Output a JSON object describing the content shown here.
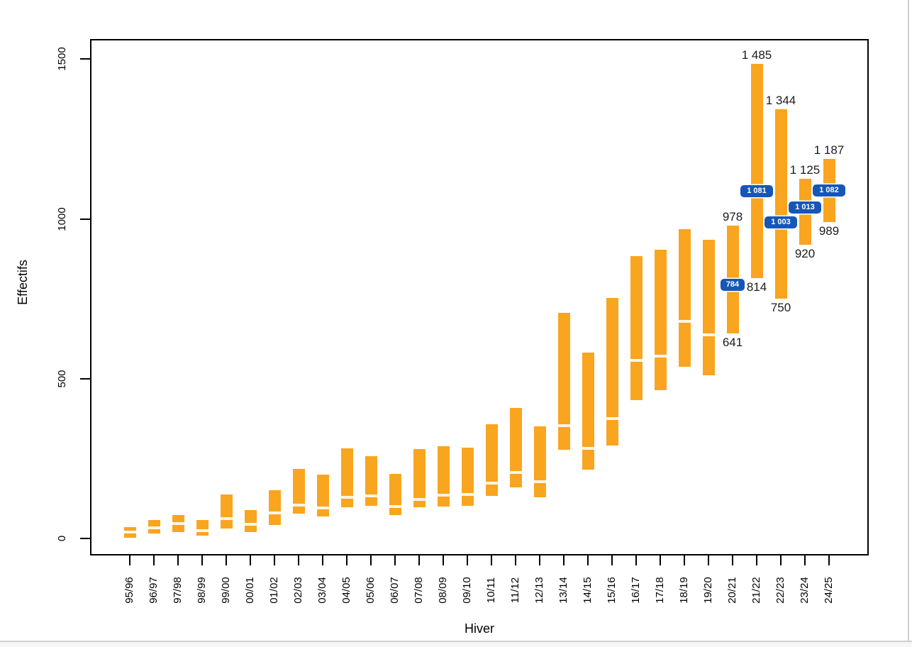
{
  "window": {
    "background": "#ffffff",
    "border_color": "#cfcfcf",
    "bottom_strip_color": "#f6f6f6"
  },
  "chart_data": {
    "type": "bar",
    "subtype": "floating-range-bars",
    "title": "",
    "xlabel": "Hiver",
    "ylabel": "Effectifs",
    "ylim": [
      0,
      1500
    ],
    "ytick_values": [
      0,
      500,
      1000,
      1500
    ],
    "ytick_labels": [
      "0",
      "500",
      "1000",
      "1500"
    ],
    "grid": false,
    "legend": false,
    "categories": [
      "95/96",
      "96/97",
      "97/98",
      "98/99",
      "99/00",
      "00/01",
      "01/02",
      "02/03",
      "03/04",
      "04/05",
      "05/06",
      "06/07",
      "07/08",
      "08/09",
      "09/10",
      "10/11",
      "11/12",
      "12/13",
      "13/14",
      "14/15",
      "15/16",
      "16/17",
      "17/18",
      "18/19",
      "19/20",
      "20/21",
      "21/22",
      "22/23",
      "23/24",
      "24/25"
    ],
    "series": [
      {
        "name": "minimum",
        "values": [
          2,
          16,
          20,
          9,
          31,
          20,
          42,
          77,
          68,
          98,
          101,
          72,
          98,
          99,
          103,
          132,
          160,
          129,
          277,
          215,
          290,
          432,
          464,
          538,
          510,
          641,
          814,
          750,
          920,
          989
        ]
      },
      {
        "name": "maximum",
        "values": [
          36,
          58,
          73,
          58,
          137,
          88,
          151,
          218,
          199,
          281,
          257,
          201,
          279,
          288,
          285,
          358,
          408,
          351,
          705,
          582,
          752,
          883,
          904,
          968,
          935,
          978,
          1485,
          1344,
          1125,
          1187
        ]
      },
      {
        "name": "marker",
        "values": [
          19,
          34,
          46,
          24,
          62,
          44,
          81,
          104,
          95,
          129,
          134,
          100,
          123,
          135,
          138,
          174,
          206,
          178,
          353,
          282,
          376,
          557,
          570,
          679,
          638,
          784,
          1081,
          1003,
          1013,
          1082
        ]
      }
    ],
    "badges": [
      {
        "category": "20/21",
        "text": "784",
        "value": 784
      },
      {
        "category": "21/22",
        "text": "1 081",
        "value": 1081
      },
      {
        "category": "22/23",
        "text": "1 003",
        "value": 1003
      },
      {
        "category": "23/24",
        "text": "1 013",
        "value": 1013
      },
      {
        "category": "24/25",
        "text": "1 082",
        "value": 1082
      }
    ],
    "annotations": [
      {
        "category": "20/21",
        "text": "978",
        "position": "above",
        "value": 978
      },
      {
        "category": "20/21",
        "text": "641",
        "position": "below",
        "value": 641
      },
      {
        "category": "21/22",
        "text": "1 485",
        "position": "above",
        "value": 1485
      },
      {
        "category": "21/22",
        "text": "814",
        "position": "below",
        "value": 814
      },
      {
        "category": "22/23",
        "text": "1 344",
        "position": "above",
        "value": 1344
      },
      {
        "category": "22/23",
        "text": "750",
        "position": "below",
        "value": 750
      },
      {
        "category": "23/24",
        "text": "1 125",
        "position": "above",
        "value": 1125
      },
      {
        "category": "23/24",
        "text": "920",
        "position": "below",
        "value": 920
      },
      {
        "category": "24/25",
        "text": "1 187",
        "position": "above",
        "value": 1187
      },
      {
        "category": "24/25",
        "text": "989",
        "position": "below",
        "value": 989
      }
    ],
    "colors": {
      "bar": "#F9A51F",
      "marker_gap": "#FCF5EA",
      "badge": "#1656B8",
      "badge_text": "#FFFFFF",
      "annotation": "#1C1C1C",
      "axis": "#000000"
    }
  }
}
